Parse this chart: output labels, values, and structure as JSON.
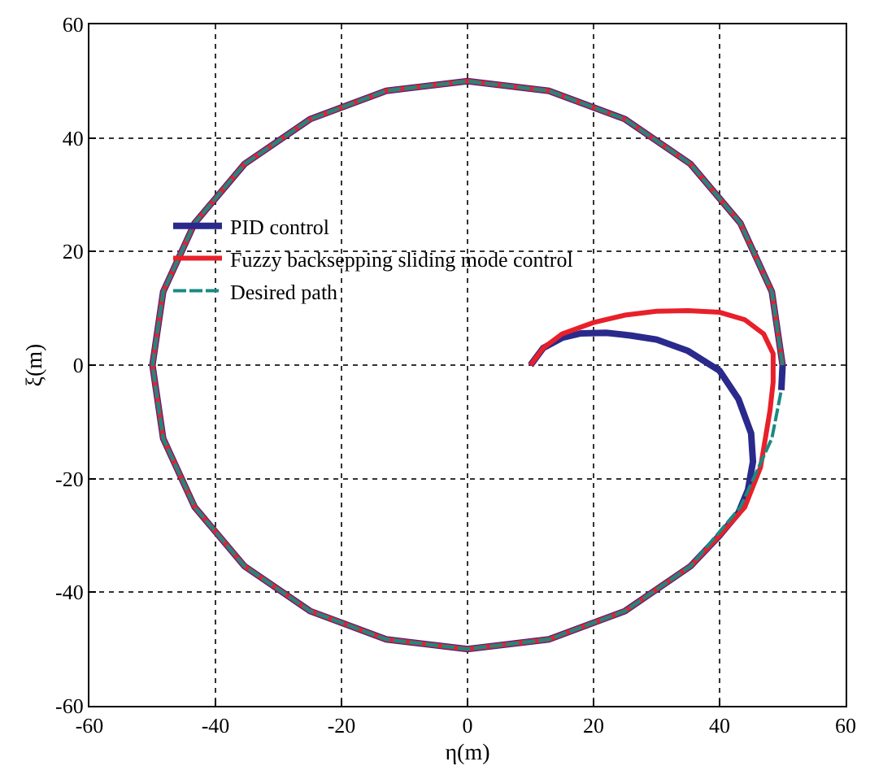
{
  "chart_data": {
    "type": "line",
    "xlabel": "η(m)",
    "ylabel": "ξ(m)",
    "xlim": [
      -60,
      60
    ],
    "xticks": [
      -60,
      -40,
      -20,
      0,
      20,
      40,
      60
    ],
    "ylim": [
      -60,
      60
    ],
    "yticks": [
      -60,
      -40,
      -20,
      0,
      20,
      40,
      60
    ],
    "grid": true,
    "legend": "top left",
    "marker": "none",
    "series": [
      {
        "name": "PID control",
        "color": "#2a2a8c",
        "line_style": "solid",
        "x": [
          10,
          12,
          15,
          18,
          22,
          26,
          30,
          35,
          40,
          43,
          45,
          45.3,
          44.5,
          43,
          40,
          35.4,
          25,
          12.9,
          0,
          -12.9,
          -25,
          -35.4,
          -43.3,
          -48.3,
          -50,
          -48.3,
          -43.3,
          -35.4,
          -25,
          -12.9,
          0,
          12.9,
          25,
          35.4,
          43.3,
          48.3,
          50,
          49.8
        ],
        "values": [
          0,
          3,
          4.8,
          5.6,
          5.7,
          5.2,
          4.5,
          2.5,
          -1,
          -6,
          -12,
          -17,
          -22,
          -26,
          -30,
          -35.4,
          -43.3,
          -48.3,
          -50,
          -48.3,
          -43.3,
          -35.4,
          -25,
          -12.9,
          0,
          12.9,
          25,
          35.4,
          43.3,
          48.3,
          50,
          48.3,
          43.3,
          35.4,
          25,
          12.9,
          0,
          -4.4
        ]
      },
      {
        "name": "Fuzzy backsepping sliding mode control",
        "color": "#e8202a",
        "line_style": "solid",
        "x": [
          10,
          12,
          15,
          20,
          25,
          30,
          35,
          40,
          44,
          47,
          48.5,
          48.5,
          48,
          46.5,
          44,
          40,
          35.4,
          25,
          12.9,
          0,
          -12.9,
          -25,
          -35.4,
          -43.3,
          -48.3,
          -50,
          -48.3,
          -43.3,
          -35.4,
          -25,
          -12.9,
          0,
          12.9,
          25,
          35.4,
          43.3,
          48.3,
          50
        ],
        "values": [
          0,
          3,
          5.5,
          7.5,
          8.8,
          9.5,
          9.6,
          9.3,
          8,
          5.5,
          2,
          -3,
          -8,
          -18,
          -25,
          -30,
          -35.4,
          -43.3,
          -48.3,
          -50,
          -48.3,
          -43.3,
          -35.4,
          -25,
          -12.9,
          0,
          12.9,
          25,
          35.4,
          43.3,
          48.3,
          50,
          48.3,
          43.3,
          35.4,
          25,
          12.9,
          0
        ]
      },
      {
        "name": "Desired path",
        "color": "#1a8a80",
        "line_style": "dashed",
        "x": [
          50,
          48.3,
          43.3,
          35.4,
          25,
          12.9,
          0,
          -12.9,
          -25,
          -35.4,
          -43.3,
          -48.3,
          -50,
          -48.3,
          -43.3,
          -35.4,
          -25,
          -12.9,
          0,
          12.9,
          25,
          35.4,
          43.3,
          48.3,
          49.8
        ],
        "values": [
          0,
          12.9,
          25,
          35.4,
          43.3,
          48.3,
          50,
          48.3,
          43.3,
          35.4,
          25,
          12.9,
          0,
          -12.9,
          -25,
          -35.4,
          -43.3,
          -48.3,
          -50,
          -48.3,
          -43.3,
          -35.4,
          -25,
          -12.9,
          -4.4
        ]
      }
    ]
  }
}
